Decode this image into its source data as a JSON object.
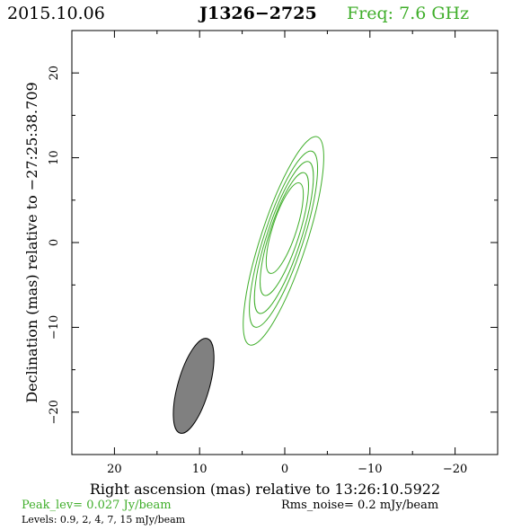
{
  "header": {
    "date": "2015.10.06",
    "source": "J1326−2725",
    "freq_label": "Freq:",
    "freq_value": "7.6 GHz"
  },
  "footer": {
    "peak": "Peak_lev=  0.027 Jy/beam",
    "rms": "Rms_noise=   0.2 mJy/beam",
    "levels": "Levels: 0.9,   2,   4,   7,   15 mJy/beam"
  },
  "colors": {
    "contour": "#3fae2a",
    "beam_fill": "#808080",
    "axes": "#000000"
  },
  "chart_data": {
    "type": "contour",
    "xlabel": "Right ascension (mas) relative to 13:26:10.5922",
    "ylabel": "Declination (mas) relative to −27:25:38.709",
    "xlim": [
      25,
      -25
    ],
    "ylim": [
      -25,
      25
    ],
    "x_ticks": [
      20,
      10,
      0,
      -10,
      -20
    ],
    "x_tick_labels": [
      "20",
      "10",
      "0",
      "−10",
      "−20"
    ],
    "y_ticks": [
      -20,
      -10,
      0,
      10,
      20
    ],
    "y_tick_labels": [
      "−20",
      "−10",
      "0",
      "10",
      "20"
    ],
    "minor_tick_step": 5,
    "contour_levels_mJy": [
      0.9,
      2,
      4,
      7,
      15
    ],
    "contours": [
      {
        "level": 0.9,
        "cx": 0.15,
        "cy": 0.2,
        "semi_major": 12.9,
        "semi_minor": 2.7,
        "pa_deg": 18
      },
      {
        "level": 2,
        "cx": 0.15,
        "cy": 0.4,
        "semi_major": 10.9,
        "semi_minor": 2.3,
        "pa_deg": 18
      },
      {
        "level": 4,
        "cx": 0.1,
        "cy": 0.6,
        "semi_major": 9.4,
        "semi_minor": 2.0,
        "pa_deg": 18
      },
      {
        "level": 7,
        "cx": 0.05,
        "cy": 1.0,
        "semi_major": 7.6,
        "semi_minor": 1.7,
        "pa_deg": 18
      },
      {
        "level": 15,
        "cx": 0.0,
        "cy": 1.7,
        "semi_major": 5.6,
        "semi_minor": 1.4,
        "pa_deg": 18
      }
    ],
    "beam": {
      "cx": 10.7,
      "cy": -16.9,
      "semi_major": 5.8,
      "semi_minor": 1.85,
      "pa_deg": 16
    }
  }
}
